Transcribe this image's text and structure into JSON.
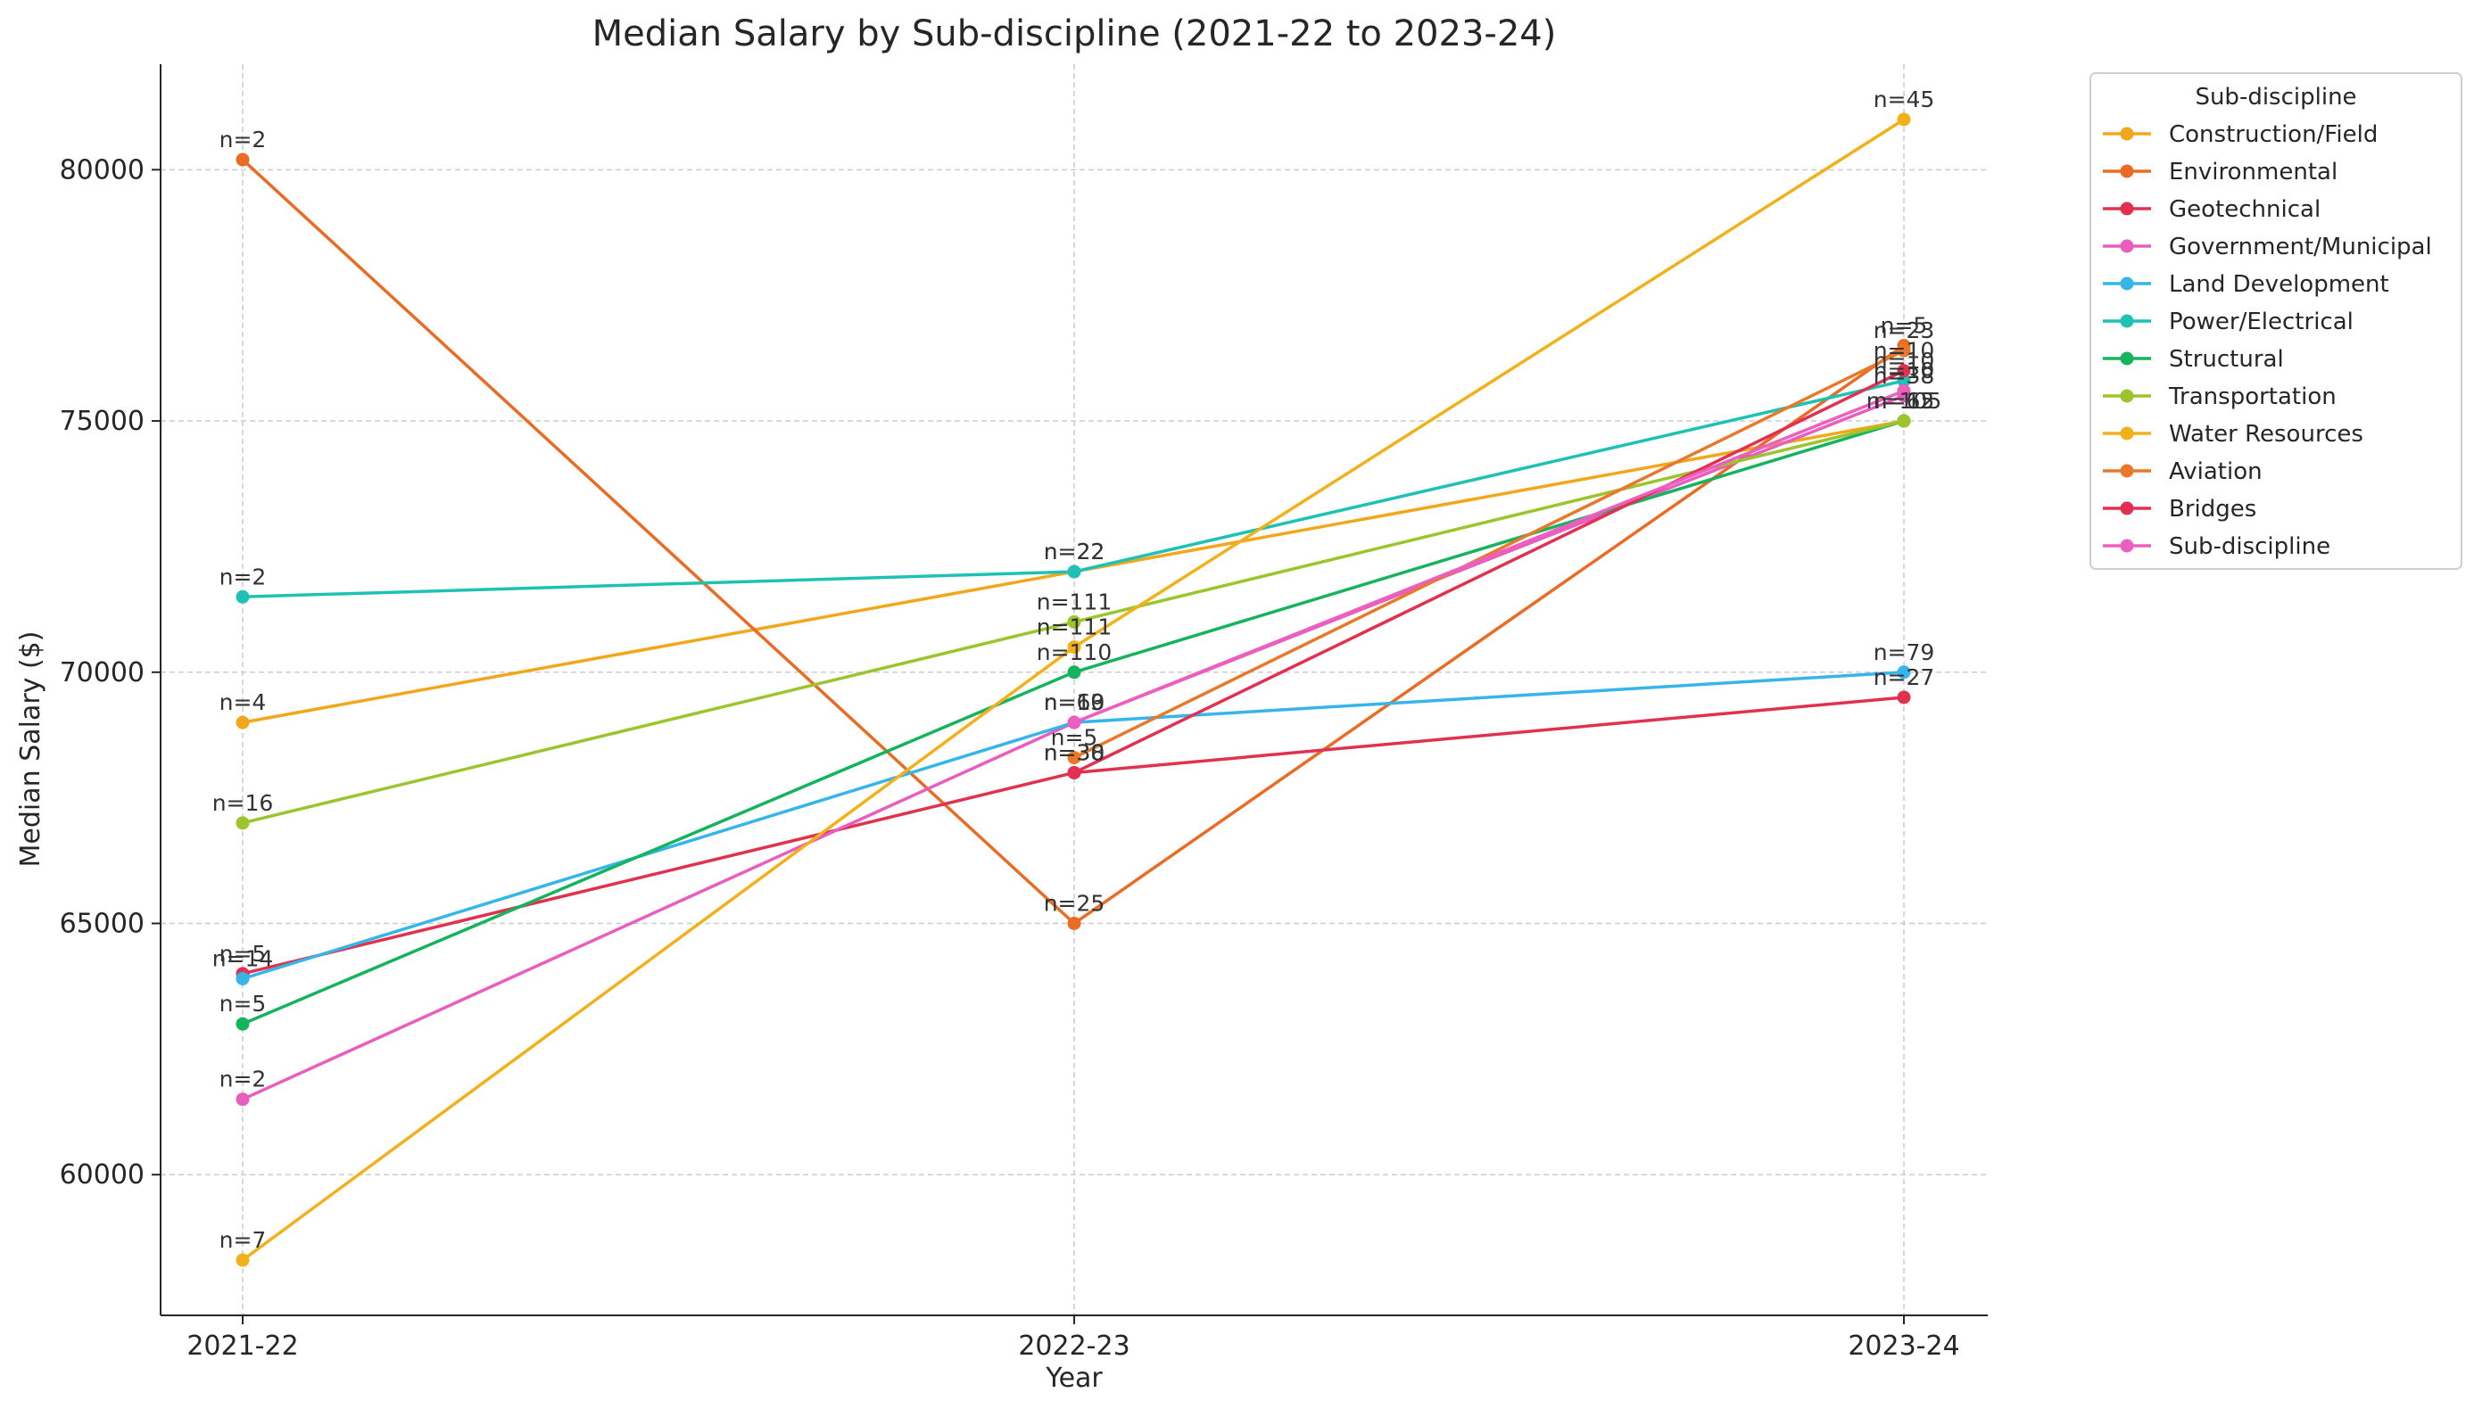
{
  "chart_data": {
    "type": "line",
    "title": "Median Salary by Sub-discipline (2021-22 to 2023-24)",
    "xlabel": "Year",
    "ylabel": "Median Salary ($)",
    "categories": [
      "2021-22",
      "2022-23",
      "2023-24"
    ],
    "ylim": [
      57200,
      82100
    ],
    "yticks": [
      60000,
      65000,
      70000,
      75000,
      80000
    ],
    "grid": true,
    "legend": {
      "title": "Sub-discipline",
      "placement": "outside-top-right"
    },
    "series": [
      {
        "name": "Construction/Field",
        "color": "#f2a71b",
        "values": [
          69000,
          72000,
          75000
        ],
        "labels": [
          "n=4",
          "n=22",
          "n=15"
        ]
      },
      {
        "name": "Environmental",
        "color": "#ea6b23",
        "values": [
          80200,
          65000,
          76500
        ],
        "labels": [
          "n=2",
          "n=25",
          "n=5"
        ]
      },
      {
        "name": "Geotechnical",
        "color": "#e0324f",
        "values": [
          64000,
          68000,
          69500
        ],
        "labels": [
          "n=5",
          "n=38",
          "n=27"
        ]
      },
      {
        "name": "Government/Municipal",
        "color": "#e85dbd",
        "values": [
          61500,
          69000,
          75500
        ],
        "labels": [
          "n=2",
          "n=13",
          "n=38"
        ]
      },
      {
        "name": "Land Development",
        "color": "#35b5ea",
        "values": [
          63900,
          69000,
          70000
        ],
        "labels": [
          "n=14",
          "n=69",
          "n=79"
        ]
      },
      {
        "name": "Power/Electrical",
        "color": "#1ec2b5",
        "values": [
          71500,
          72000,
          75800
        ],
        "labels": [
          "n=2",
          "n=22",
          "n=10"
        ]
      },
      {
        "name": "Structural",
        "color": "#16b35f",
        "values": [
          63000,
          70000,
          75000
        ],
        "labels": [
          "n=5",
          "n=110",
          "n=105"
        ]
      },
      {
        "name": "Transportation",
        "color": "#9cc42c",
        "values": [
          67000,
          71000,
          75000
        ],
        "labels": [
          "n=16",
          "n=111",
          "n=62"
        ]
      },
      {
        "name": "Water Resources",
        "color": "#f2b01b",
        "values": [
          58300,
          70500,
          81000
        ],
        "labels": [
          "n=7",
          "n=111",
          "n=45"
        ]
      },
      {
        "name": "Aviation",
        "color": "#e8782a",
        "values": [
          null,
          68300,
          76400
        ],
        "labels": [
          "",
          "n=5",
          "n=23"
        ]
      },
      {
        "name": "Bridges",
        "color": "#e33050",
        "values": [
          null,
          68000,
          76000
        ],
        "labels": [
          "",
          "n=30",
          "n=10"
        ]
      },
      {
        "name": "Sub-discipline",
        "color": "#ed5fbf",
        "values": [
          null,
          69000,
          75600
        ],
        "labels": [
          "",
          "n=10",
          "n=10"
        ]
      }
    ]
  }
}
